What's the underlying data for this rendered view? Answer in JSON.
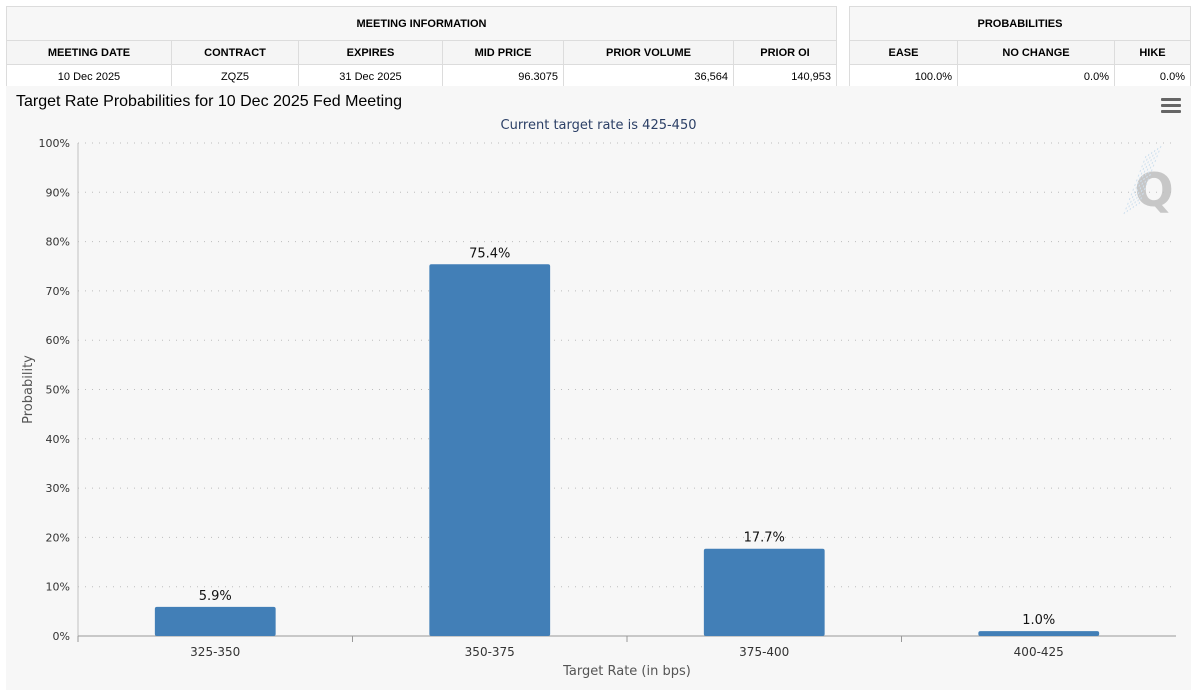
{
  "meeting_info": {
    "group_label": "MEETING INFORMATION",
    "headers": [
      "MEETING DATE",
      "CONTRACT",
      "EXPIRES",
      "MID PRICE",
      "PRIOR VOLUME",
      "PRIOR OI"
    ],
    "values": [
      "10 Dec 2025",
      "ZQZ5",
      "31 Dec 2025",
      "96.3075",
      "36,564",
      "140,953"
    ]
  },
  "probabilities": {
    "group_label": "PROBABILITIES",
    "headers": [
      "EASE",
      "NO CHANGE",
      "HIKE"
    ],
    "values": [
      "100.0%",
      "0.0%",
      "0.0%"
    ]
  },
  "chart_data": {
    "type": "bar",
    "title": "Target Rate Probabilities for 10 Dec 2025 Fed Meeting",
    "subtitle": "Current target rate is 425-450",
    "xlabel": "Target Rate (in bps)",
    "ylabel": "Probability",
    "categories": [
      "325-350",
      "350-375",
      "375-400",
      "400-425"
    ],
    "values": [
      5.9,
      75.4,
      17.7,
      1.0
    ],
    "data_labels": [
      "5.9%",
      "75.4%",
      "17.7%",
      "1.0%"
    ],
    "ylim": [
      0,
      100
    ],
    "y_ticks": [
      0,
      10,
      20,
      30,
      40,
      50,
      60,
      70,
      80,
      90,
      100
    ],
    "y_tick_labels": [
      "0%",
      "10%",
      "20%",
      "30%",
      "40%",
      "50%",
      "60%",
      "70%",
      "80%",
      "90%",
      "100%"
    ],
    "grid": true,
    "bar_color": "#427fb7",
    "watermark_text": "Q"
  }
}
